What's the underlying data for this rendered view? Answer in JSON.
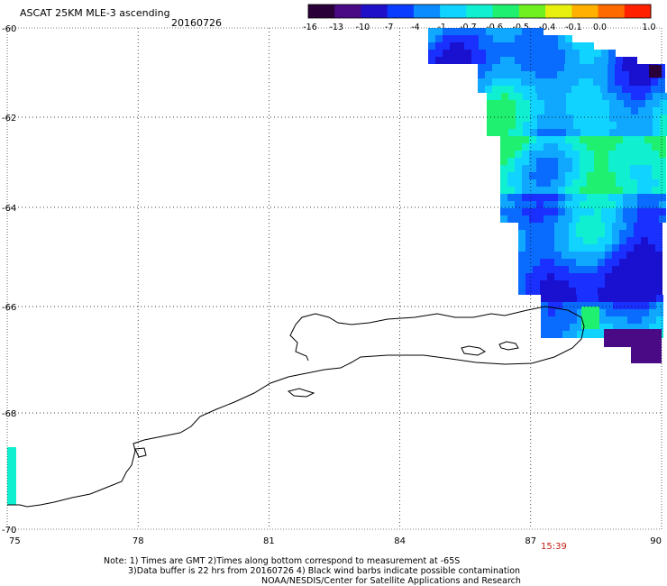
{
  "header": {
    "title": "ASCAT 25KM MLE-3 ascending",
    "date": "20160726"
  },
  "colorbar": {
    "labels": [
      "-16",
      "-13",
      "-10",
      "-7",
      "-4",
      "-1",
      "-0.7",
      "-0.6",
      "-0.5",
      "-0.4",
      "-0.1",
      "0.0",
      "1.0"
    ],
    "colors": [
      "#2a0038",
      "#4a0a86",
      "#2010c8",
      "#0a3cff",
      "#0a8cff",
      "#10d4ff",
      "#10f0d0",
      "#20f070",
      "#70f020",
      "#e8f010",
      "#ffb000",
      "#ff6a00",
      "#ff2000"
    ]
  },
  "chart_data": {
    "type": "heatmap",
    "title": "ASCAT 25KM MLE-3 ascending",
    "x_ticks": [
      "75",
      "78",
      "81",
      "84",
      "87",
      "90"
    ],
    "y_ticks": [
      "-60",
      "-62",
      "-64",
      "-66",
      "-68",
      "-70"
    ],
    "xlim": [
      75,
      90
    ],
    "ylim": [
      -70,
      -60
    ],
    "grid": true,
    "time_label": "15:39",
    "coastline": "Antarctic coast around 75E to 90E (West Ice Shelf)"
  },
  "footer": {
    "line1": "Note: 1) Times are GMT 2)Times along bottom correspond to measurement at -65S",
    "line2": "3)Data buffer is 22 hrs from 20160726 4) Black wind barbs indicate possible contamination",
    "line3": "NOAA/NESDIS/Center for Satellite Applications and Research"
  }
}
